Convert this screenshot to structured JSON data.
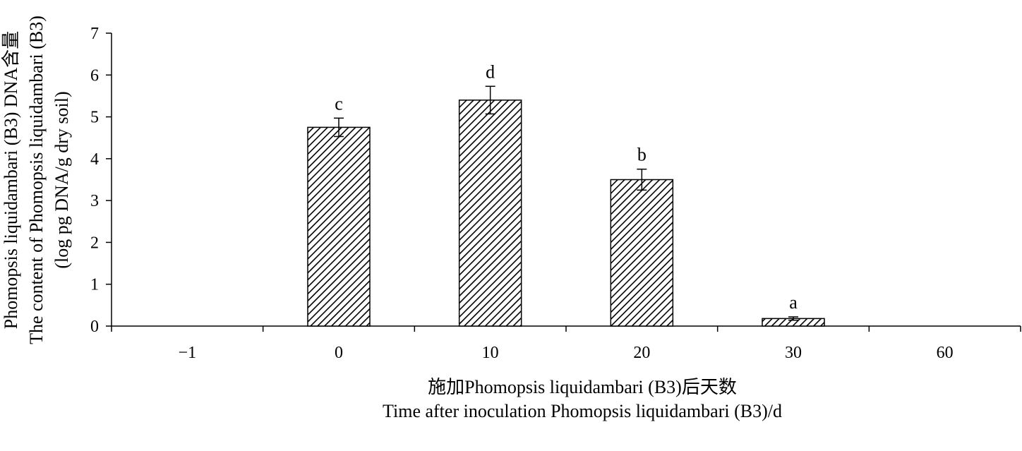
{
  "chart_data": {
    "type": "bar",
    "categories": [
      "−1",
      "0",
      "10",
      "20",
      "30",
      "60"
    ],
    "values": [
      0,
      4.75,
      5.4,
      3.5,
      0.18,
      0
    ],
    "errors": [
      0,
      0.22,
      0.33,
      0.25,
      0.04,
      0
    ],
    "significance": [
      "",
      "c",
      "d",
      "b",
      "a",
      ""
    ],
    "ylim": [
      0,
      7
    ],
    "yticks": [
      0,
      1,
      2,
      3,
      4,
      5,
      6,
      7
    ],
    "xlabel_line1": "施加Phomopsis liquidambari (B3)后天数",
    "xlabel_line2": "Time after inoculation Phomopsis liquidambari (B3)/d",
    "ylabel_line1": "Phomopsis liquidambari (B3) DNA含量",
    "ylabel_line2": "The content of Phomopsis liquidambari (B3)",
    "ylabel_line3": "(log pg DNA/g dry soil)",
    "grid": false,
    "legend": "none",
    "bar_fill": "hatched",
    "bar_color": "#000000"
  }
}
